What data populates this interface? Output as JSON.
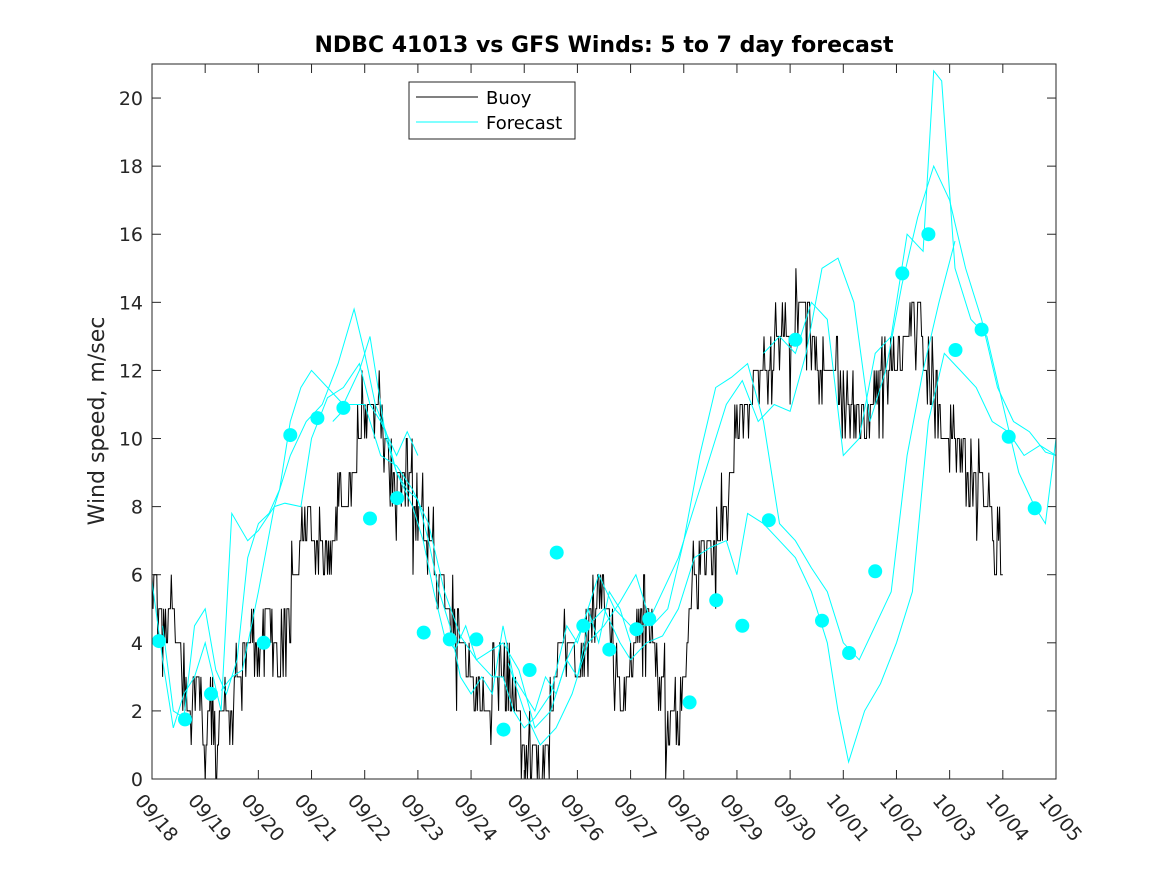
{
  "chart_data": {
    "type": "line",
    "title": "NDBC 41013 vs GFS Winds: 5 to 7 day forecast",
    "xlabel": "",
    "ylabel": "Wind speed, m/sec",
    "xlim": [
      0,
      17
    ],
    "ylim": [
      0,
      21
    ],
    "yticks": [
      0,
      2,
      4,
      6,
      8,
      10,
      12,
      14,
      16,
      18,
      20
    ],
    "xtick_labels": [
      "09/18",
      "09/19",
      "09/20",
      "09/21",
      "09/22",
      "09/23",
      "09/24",
      "09/25",
      "09/26",
      "09/27",
      "09/28",
      "09/29",
      "09/30",
      "10/01",
      "10/02",
      "10/03",
      "10/04",
      "10/05"
    ],
    "legend": {
      "position": "top-center",
      "entries": [
        {
          "name": "Buoy",
          "color": "#000000"
        },
        {
          "name": "Forecast",
          "color": "#00FFFF"
        }
      ]
    },
    "colors": {
      "buoy": "#000000",
      "forecast": "#00FFFF",
      "markers": "#00FFFF"
    },
    "buoy_anchors": [
      [
        0.0,
        6
      ],
      [
        0.2,
        5
      ],
      [
        0.4,
        5
      ],
      [
        0.5,
        4
      ],
      [
        0.6,
        3
      ],
      [
        0.7,
        2
      ],
      [
        0.85,
        3
      ],
      [
        0.9,
        2
      ],
      [
        1.0,
        1
      ],
      [
        1.1,
        2
      ],
      [
        1.2,
        1
      ],
      [
        1.3,
        2
      ],
      [
        1.5,
        2
      ],
      [
        1.6,
        3
      ],
      [
        1.8,
        4
      ],
      [
        2.0,
        4
      ],
      [
        2.2,
        5
      ],
      [
        2.4,
        3
      ],
      [
        2.5,
        5
      ],
      [
        2.7,
        6
      ],
      [
        2.8,
        7
      ],
      [
        3.0,
        7
      ],
      [
        3.3,
        7
      ],
      [
        3.6,
        8
      ],
      [
        3.8,
        9
      ],
      [
        3.9,
        10
      ],
      [
        4.0,
        11
      ],
      [
        4.2,
        11
      ],
      [
        4.4,
        10
      ],
      [
        4.5,
        9
      ],
      [
        4.8,
        9
      ],
      [
        5.0,
        8
      ],
      [
        5.2,
        7
      ],
      [
        5.4,
        6
      ],
      [
        5.6,
        5
      ],
      [
        5.8,
        4
      ],
      [
        6.0,
        3
      ],
      [
        6.1,
        2
      ],
      [
        6.3,
        2
      ],
      [
        6.5,
        3
      ],
      [
        6.7,
        3
      ],
      [
        6.8,
        2
      ],
      [
        7.0,
        1
      ],
      [
        7.1,
        1
      ],
      [
        7.3,
        0
      ],
      [
        7.45,
        1
      ],
      [
        7.6,
        3
      ],
      [
        7.7,
        4
      ],
      [
        7.9,
        4
      ],
      [
        8.0,
        3
      ],
      [
        8.2,
        4
      ],
      [
        8.4,
        6
      ],
      [
        8.6,
        5
      ],
      [
        8.7,
        3
      ],
      [
        8.9,
        2
      ],
      [
        9.0,
        3
      ],
      [
        9.1,
        4
      ],
      [
        9.3,
        5
      ],
      [
        9.4,
        4
      ],
      [
        9.6,
        3
      ],
      [
        9.7,
        2
      ],
      [
        9.8,
        2
      ],
      [
        9.9,
        1
      ],
      [
        10.0,
        3
      ],
      [
        10.1,
        5
      ],
      [
        10.2,
        6
      ],
      [
        10.4,
        7
      ],
      [
        10.6,
        7
      ],
      [
        10.8,
        8
      ],
      [
        10.9,
        9
      ],
      [
        11.0,
        10
      ],
      [
        11.1,
        11
      ],
      [
        11.2,
        11
      ],
      [
        11.4,
        12
      ],
      [
        11.6,
        12
      ],
      [
        11.8,
        13
      ],
      [
        12.0,
        13
      ],
      [
        12.2,
        14
      ],
      [
        12.4,
        13
      ],
      [
        12.6,
        12
      ],
      [
        12.8,
        12
      ],
      [
        13.0,
        11
      ],
      [
        13.2,
        11
      ],
      [
        13.4,
        11
      ],
      [
        13.6,
        11
      ],
      [
        13.8,
        12
      ],
      [
        14.0,
        12
      ],
      [
        14.2,
        13
      ],
      [
        14.4,
        13
      ],
      [
        14.6,
        12
      ],
      [
        14.8,
        11
      ],
      [
        14.9,
        10
      ],
      [
        15.0,
        10
      ],
      [
        15.2,
        10
      ],
      [
        15.4,
        9
      ],
      [
        15.6,
        9
      ],
      [
        15.7,
        8
      ],
      [
        15.9,
        7
      ],
      [
        16.0,
        6
      ]
    ],
    "forecast_runs": [
      [
        [
          0.0,
          5.8
        ],
        [
          0.2,
          3.5
        ],
        [
          0.4,
          1.5
        ],
        [
          0.6,
          2.5
        ],
        [
          0.8,
          3.0
        ],
        [
          1.0,
          4.0
        ],
        [
          1.3,
          2.0
        ],
        [
          1.5,
          7.8
        ],
        [
          1.8,
          7.0
        ],
        [
          2.0,
          7.3
        ],
        [
          2.3,
          8.0
        ],
        [
          2.5,
          8.1
        ],
        [
          2.8,
          8.0
        ],
        [
          3.0,
          10.0
        ],
        [
          3.3,
          11.2
        ],
        [
          3.6,
          11.5
        ],
        [
          3.9,
          12.2
        ],
        [
          4.1,
          11.0
        ],
        [
          4.3,
          10.5
        ],
        [
          4.6,
          9.5
        ],
        [
          4.8,
          10.2
        ],
        [
          5.0,
          9.5
        ]
      ],
      [
        [
          0.2,
          4.5
        ],
        [
          0.4,
          2.0
        ],
        [
          0.6,
          1.8
        ],
        [
          0.8,
          4.5
        ],
        [
          1.0,
          5.0
        ],
        [
          1.2,
          3.2
        ],
        [
          1.4,
          2.5
        ],
        [
          1.6,
          3.5
        ],
        [
          1.8,
          6.5
        ],
        [
          2.0,
          7.5
        ],
        [
          2.2,
          7.8
        ],
        [
          2.4,
          8.5
        ],
        [
          2.6,
          10.5
        ],
        [
          2.8,
          11.5
        ],
        [
          3.0,
          12.0
        ],
        [
          3.3,
          11.5
        ],
        [
          3.6,
          11.0
        ],
        [
          3.9,
          12.0
        ],
        [
          4.1,
          13.0
        ],
        [
          4.4,
          10.0
        ],
        [
          4.6,
          9.0
        ],
        [
          4.9,
          8.0
        ],
        [
          5.1,
          7.0
        ],
        [
          5.3,
          5.5
        ],
        [
          5.5,
          4.2
        ],
        [
          5.7,
          3.8
        ],
        [
          5.9,
          4.5
        ],
        [
          6.1,
          3.5
        ],
        [
          6.4,
          3.0
        ],
        [
          6.6,
          3.0
        ],
        [
          6.8,
          2.0
        ],
        [
          7.0,
          1.5
        ],
        [
          7.2,
          1.8
        ],
        [
          7.5,
          2.5
        ],
        [
          7.8,
          4.5
        ],
        [
          8.0,
          4.0
        ],
        [
          8.2,
          5.0
        ],
        [
          8.4,
          4.0
        ],
        [
          8.6,
          5.5
        ],
        [
          8.8,
          5.0
        ],
        [
          9.0,
          4.0
        ]
      ],
      [
        [
          1.3,
          2.6
        ],
        [
          1.5,
          3.0
        ],
        [
          1.7,
          3.2
        ],
        [
          2.0,
          5.5
        ],
        [
          2.3,
          8.0
        ],
        [
          2.6,
          9.5
        ],
        [
          2.9,
          10.5
        ],
        [
          3.2,
          11.0
        ],
        [
          3.5,
          12.2
        ],
        [
          3.8,
          13.8
        ],
        [
          4.0,
          12.5
        ],
        [
          4.2,
          11.0
        ],
        [
          4.4,
          10.2
        ],
        [
          4.6,
          9.0
        ],
        [
          4.8,
          8.5
        ],
        [
          5.0,
          8.2
        ],
        [
          5.2,
          7.0
        ],
        [
          5.4,
          5.5
        ],
        [
          5.6,
          4.5
        ],
        [
          5.8,
          3.0
        ],
        [
          6.0,
          2.5
        ],
        [
          6.2,
          3.0
        ],
        [
          6.4,
          2.5
        ],
        [
          6.6,
          4.5
        ],
        [
          6.8,
          3.0
        ],
        [
          7.0,
          2.5
        ],
        [
          7.2,
          2.0
        ],
        [
          7.4,
          3.0
        ],
        [
          7.6,
          2.5
        ],
        [
          7.8,
          3.5
        ],
        [
          8.0,
          3.0
        ],
        [
          8.2,
          4.5
        ],
        [
          8.5,
          5.0
        ],
        [
          8.8,
          4.0
        ],
        [
          9.0,
          3.5
        ],
        [
          9.3,
          4.0
        ],
        [
          9.6,
          4.2
        ],
        [
          9.9,
          5.0
        ],
        [
          10.2,
          6.5
        ],
        [
          10.5,
          6.8
        ],
        [
          10.8,
          7.0
        ],
        [
          11.0,
          6.0
        ],
        [
          11.2,
          7.8
        ],
        [
          11.5,
          7.5
        ],
        [
          11.8,
          7.0
        ],
        [
          12.1,
          6.5
        ],
        [
          12.4,
          5.5
        ],
        [
          12.7,
          4.0
        ],
        [
          12.9,
          2.0
        ],
        [
          13.1,
          0.5
        ],
        [
          13.4,
          2.0
        ],
        [
          13.7,
          2.8
        ],
        [
          14.0,
          4.0
        ],
        [
          14.3,
          5.5
        ],
        [
          14.6,
          10.5
        ],
        [
          14.9,
          12.5
        ],
        [
          15.2,
          12.0
        ],
        [
          15.5,
          11.5
        ],
        [
          15.8,
          10.5
        ],
        [
          16.1,
          10.2
        ],
        [
          16.4,
          9.5
        ],
        [
          16.7,
          9.8
        ],
        [
          17.0,
          9.5
        ]
      ],
      [
        [
          3.4,
          10.5
        ],
        [
          3.7,
          11.0
        ],
        [
          4.0,
          11.0
        ],
        [
          4.3,
          9.5
        ],
        [
          4.6,
          9.2
        ],
        [
          4.9,
          8.5
        ],
        [
          5.2,
          7.5
        ],
        [
          5.5,
          5.5
        ],
        [
          5.8,
          4.2
        ],
        [
          6.1,
          3.5
        ],
        [
          6.4,
          3.8
        ],
        [
          6.6,
          4.0
        ],
        [
          6.9,
          3.2
        ],
        [
          7.2,
          1.5
        ],
        [
          7.5,
          2.0
        ],
        [
          7.8,
          3.5
        ],
        [
          8.1,
          4.5
        ],
        [
          8.4,
          6.0
        ],
        [
          8.7,
          5.0
        ],
        [
          9.0,
          4.5
        ],
        [
          9.3,
          4.5
        ],
        [
          9.6,
          5.5
        ],
        [
          9.9,
          6.5
        ],
        [
          10.2,
          8.0
        ],
        [
          10.5,
          9.5
        ],
        [
          10.8,
          11.0
        ],
        [
          11.1,
          11.7
        ],
        [
          11.4,
          10.5
        ],
        [
          11.7,
          11.0
        ],
        [
          12.0,
          10.8
        ],
        [
          12.3,
          12.5
        ],
        [
          12.6,
          15.0
        ],
        [
          12.9,
          15.3
        ],
        [
          13.2,
          14.0
        ],
        [
          13.5,
          10.5
        ],
        [
          13.8,
          12.0
        ],
        [
          14.1,
          14.5
        ],
        [
          14.4,
          16.5
        ],
        [
          14.7,
          18.0
        ],
        [
          15.0,
          17.0
        ],
        [
          15.3,
          15.0
        ],
        [
          15.6,
          13.5
        ],
        [
          15.9,
          11.5
        ],
        [
          16.2,
          10.5
        ],
        [
          16.5,
          10.2
        ],
        [
          16.8,
          9.6
        ],
        [
          17.0,
          9.5
        ]
      ],
      [
        [
          6.7,
          3.4
        ],
        [
          7.0,
          2.0
        ],
        [
          7.3,
          1.0
        ],
        [
          7.6,
          1.5
        ],
        [
          7.9,
          2.5
        ],
        [
          8.2,
          4.0
        ],
        [
          8.5,
          4.5
        ],
        [
          8.8,
          5.2
        ],
        [
          9.1,
          6.0
        ],
        [
          9.4,
          4.5
        ],
        [
          9.7,
          5.0
        ],
        [
          10.0,
          7.0
        ],
        [
          10.3,
          9.5
        ],
        [
          10.6,
          11.5
        ],
        [
          10.9,
          11.8
        ],
        [
          11.2,
          12.2
        ],
        [
          11.5,
          10.5
        ],
        [
          11.8,
          7.5
        ],
        [
          12.1,
          7.0
        ],
        [
          12.4,
          6.2
        ],
        [
          12.7,
          5.5
        ],
        [
          13.0,
          4.0
        ],
        [
          13.3,
          3.5
        ],
        [
          13.6,
          4.5
        ],
        [
          13.9,
          5.5
        ],
        [
          14.2,
          9.5
        ],
        [
          14.5,
          12.0
        ],
        [
          14.8,
          14.0
        ],
        [
          15.1,
          15.8
        ]
      ],
      [
        [
          11.5,
          12.5
        ],
        [
          11.8,
          13.0
        ],
        [
          12.1,
          12.5
        ],
        [
          12.4,
          14.0
        ],
        [
          12.7,
          13.5
        ],
        [
          13.0,
          9.5
        ],
        [
          13.3,
          10.0
        ],
        [
          13.6,
          12.5
        ],
        [
          13.9,
          13.0
        ],
        [
          14.2,
          16.0
        ],
        [
          14.5,
          15.5
        ],
        [
          14.7,
          20.8
        ],
        [
          14.85,
          20.5
        ],
        [
          15.1,
          15.0
        ],
        [
          15.4,
          13.5
        ],
        [
          15.7,
          13.0
        ],
        [
          16.0,
          11.0
        ],
        [
          16.3,
          9.0
        ],
        [
          16.6,
          8.0
        ],
        [
          16.8,
          7.5
        ],
        [
          17.0,
          10.0
        ]
      ]
    ],
    "markers": [
      [
        0.13,
        4.05
      ],
      [
        0.62,
        1.75
      ],
      [
        1.11,
        2.5
      ],
      [
        2.1,
        4.0
      ],
      [
        2.6,
        10.1
      ],
      [
        3.11,
        10.6
      ],
      [
        3.6,
        10.9
      ],
      [
        4.1,
        7.65
      ],
      [
        4.61,
        8.25
      ],
      [
        5.11,
        4.3
      ],
      [
        5.6,
        4.1
      ],
      [
        6.1,
        4.1
      ],
      [
        6.61,
        1.45
      ],
      [
        7.1,
        3.2
      ],
      [
        7.61,
        6.65
      ],
      [
        8.11,
        4.5
      ],
      [
        8.6,
        3.8
      ],
      [
        9.11,
        4.4
      ],
      [
        9.35,
        4.7
      ],
      [
        10.11,
        2.25
      ],
      [
        10.61,
        5.25
      ],
      [
        11.1,
        4.5
      ],
      [
        11.6,
        7.6
      ],
      [
        12.1,
        12.9
      ],
      [
        12.6,
        4.65
      ],
      [
        13.11,
        3.7
      ],
      [
        13.6,
        6.1
      ],
      [
        14.11,
        14.85
      ],
      [
        14.6,
        16.0
      ],
      [
        15.11,
        12.6
      ],
      [
        15.6,
        13.2
      ],
      [
        16.11,
        10.05
      ],
      [
        16.6,
        7.95
      ]
    ]
  }
}
